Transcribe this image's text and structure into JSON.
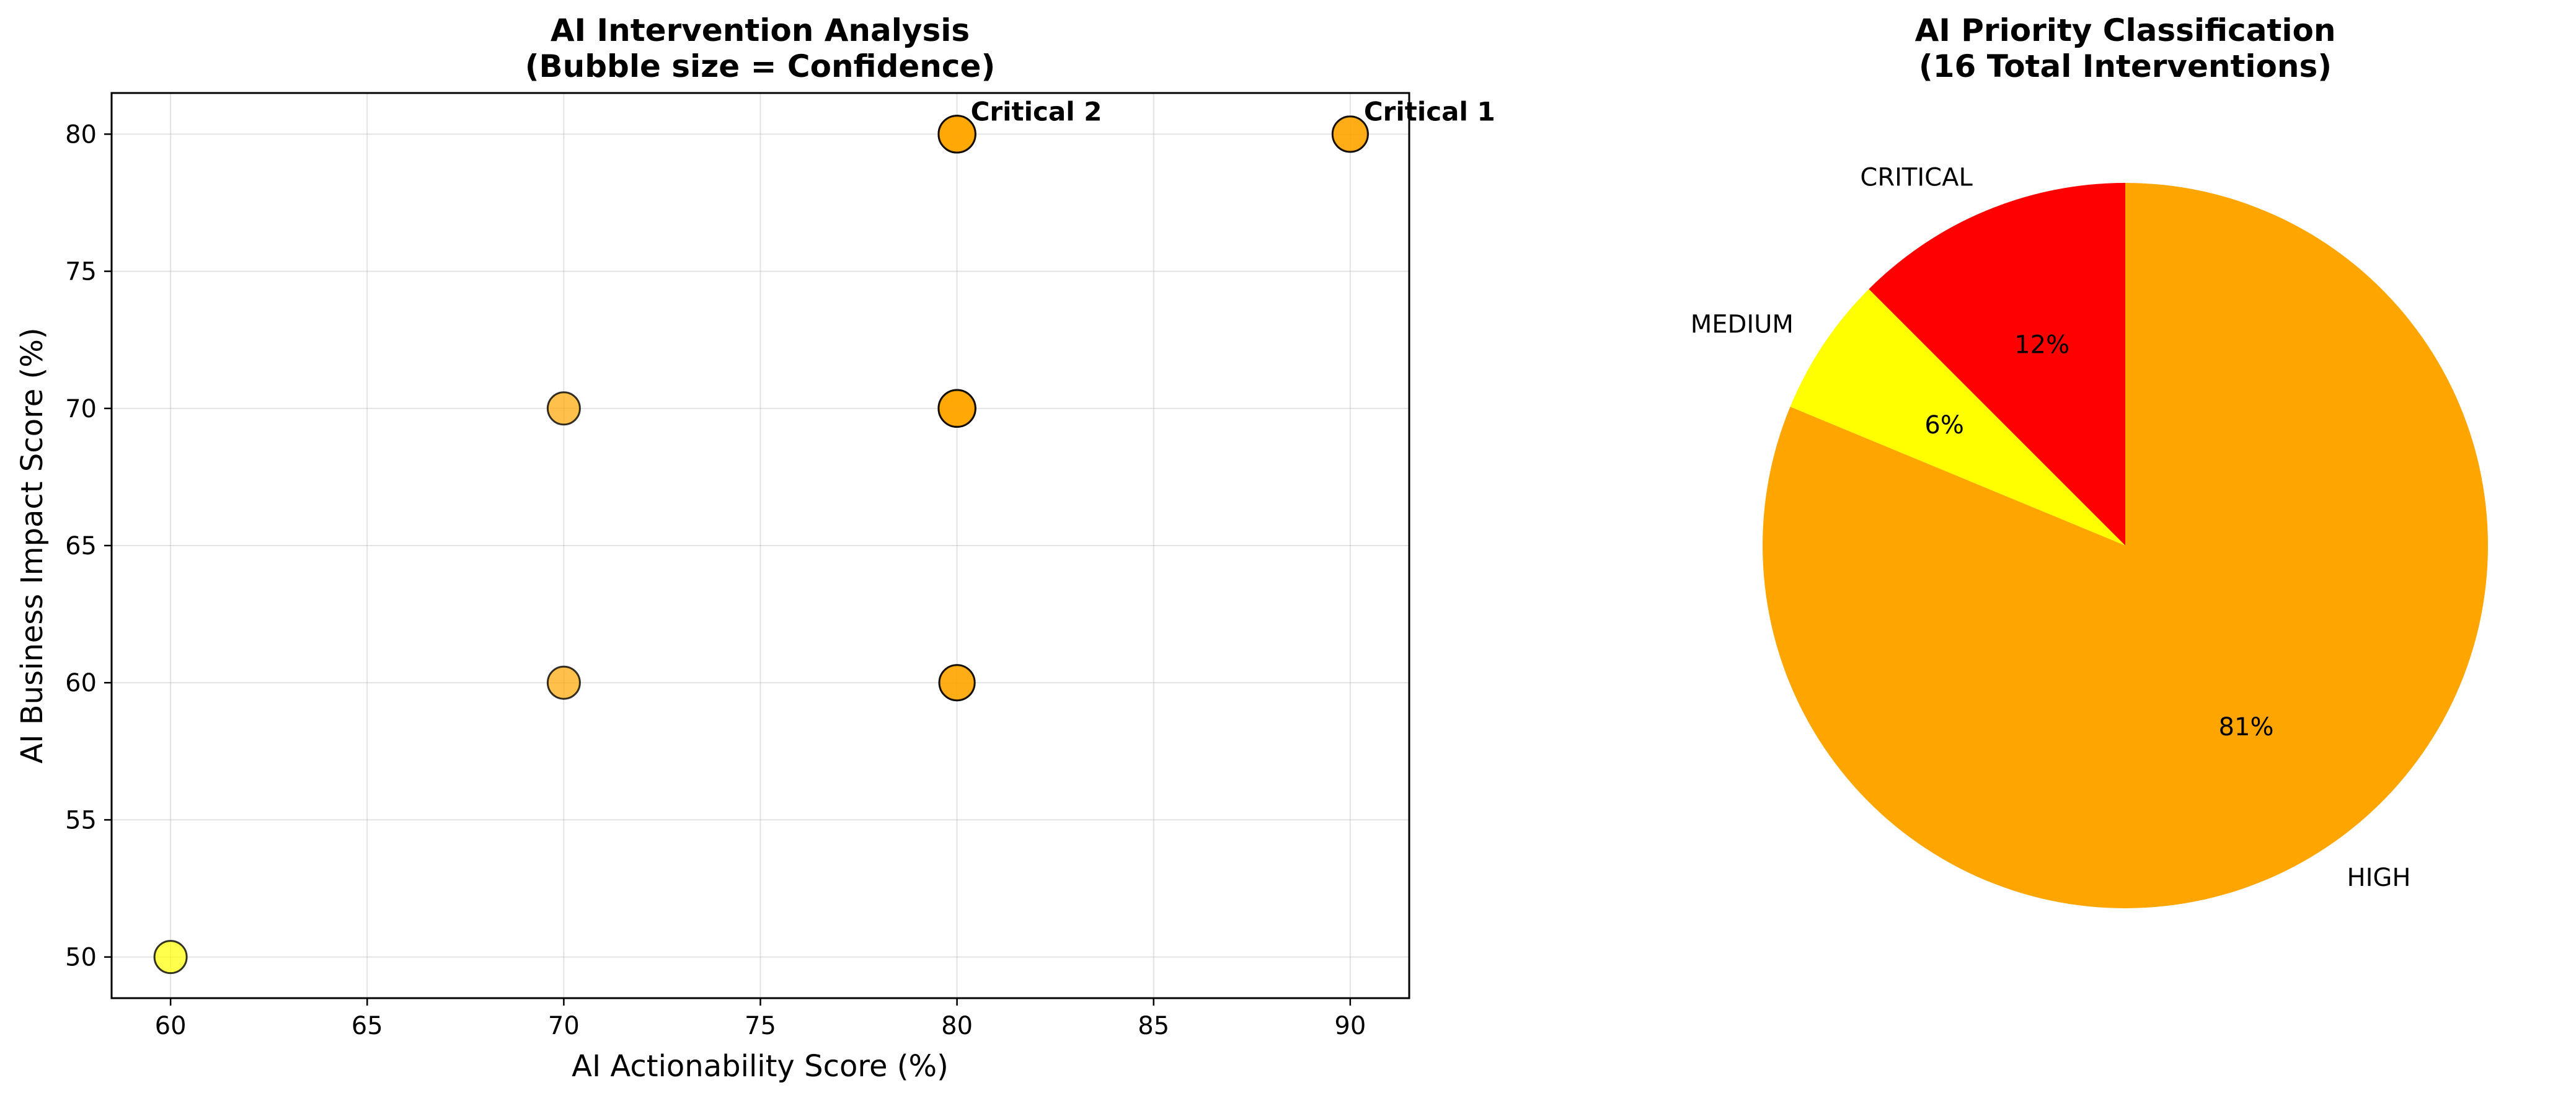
{
  "chart_data": [
    {
      "type": "scatter",
      "title_line1": "AI Intervention Analysis",
      "title_line2": "(Bubble size = Confidence)",
      "xlabel": "AI Actionability Score (%)",
      "ylabel": "AI Business Impact Score (%)",
      "xlim": [
        58.5,
        91.5
      ],
      "ylim": [
        48.5,
        81.5
      ],
      "xticks": [
        60,
        65,
        70,
        75,
        80,
        85,
        90
      ],
      "yticks": [
        50,
        55,
        60,
        65,
        70,
        75,
        80
      ],
      "grid": true,
      "points": [
        {
          "x": 60,
          "y": 50,
          "priority": "MEDIUM",
          "color": "#ffff00",
          "alpha": 0.7,
          "size": 1.0
        },
        {
          "x": 70,
          "y": 60,
          "priority": "HIGH",
          "color": "#ffa500",
          "alpha": 0.7,
          "size": 1.0
        },
        {
          "x": 70,
          "y": 70,
          "priority": "HIGH",
          "color": "#ffa500",
          "alpha": 0.7,
          "size": 1.0
        },
        {
          "x": 80,
          "y": 60,
          "priority": "HIGH",
          "color": "#ffa500",
          "alpha": 0.7,
          "size": 1.2
        },
        {
          "x": 80,
          "y": 60,
          "priority": "HIGH",
          "color": "#ffa500",
          "alpha": 0.7,
          "size": 1.2
        },
        {
          "x": 80,
          "y": 70,
          "priority": "HIGH",
          "color": "#ffa500",
          "alpha": 0.7,
          "size": 1.3
        },
        {
          "x": 80,
          "y": 70,
          "priority": "HIGH",
          "color": "#ffa500",
          "alpha": 0.7,
          "size": 1.3
        },
        {
          "x": 80,
          "y": 70,
          "priority": "HIGH",
          "color": "#ffa500",
          "alpha": 0.7,
          "size": 1.3
        },
        {
          "x": 80,
          "y": 80,
          "priority": "HIGH",
          "color": "#ffa500",
          "alpha": 0.7,
          "size": 1.3
        },
        {
          "x": 80,
          "y": 80,
          "priority": "HIGH",
          "color": "#ffa500",
          "alpha": 0.7,
          "size": 1.3
        },
        {
          "x": 80,
          "y": 80,
          "priority": "HIGH",
          "color": "#ffa500",
          "alpha": 0.7,
          "size": 1.3
        },
        {
          "x": 90,
          "y": 80,
          "priority": "HIGH",
          "color": "#ffa500",
          "alpha": 0.7,
          "size": 1.2
        },
        {
          "x": 90,
          "y": 80,
          "priority": "HIGH",
          "color": "#ffa500",
          "alpha": 0.7,
          "size": 1.2
        }
      ],
      "annotations": [
        {
          "text": "Critical 1",
          "x": 90,
          "y": 80
        },
        {
          "text": "Critical 2",
          "x": 80,
          "y": 80
        }
      ]
    },
    {
      "type": "pie",
      "title_line1": "AI Priority Classification",
      "title_line2": "(16 Total Interventions)",
      "start_angle_deg": 90,
      "slices": [
        {
          "label": "CRITICAL",
          "value": 2,
          "pct": "12%",
          "color": "#ff0000"
        },
        {
          "label": "MEDIUM",
          "value": 1,
          "pct": "6%",
          "color": "#ffff00"
        },
        {
          "label": "HIGH",
          "value": 13,
          "pct": "81%",
          "color": "#ffa500"
        }
      ]
    }
  ]
}
